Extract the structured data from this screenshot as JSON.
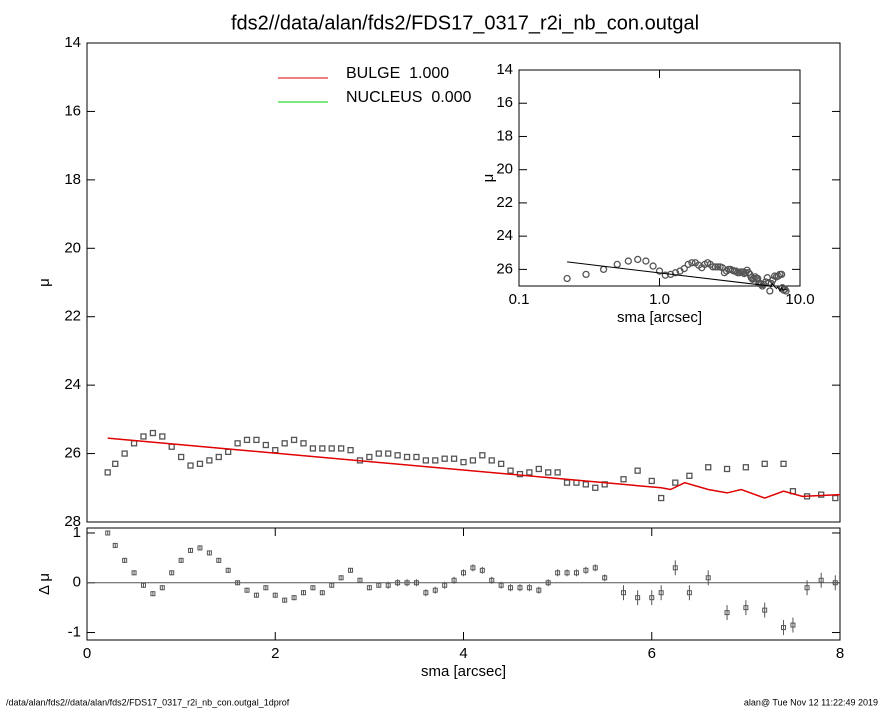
{
  "footer_left": "/data/alan/fds2//data/alan/fds2/FDS17_0317_r2i_nb_con.outgal_1dprof",
  "footer_right": "alan@  Tue Nov 12 11:22:49 2019",
  "chart_data": [
    {
      "type": "scatter",
      "title": "fds2//data/alan/fds2/FDS17_0317_r2i_nb_con.outgal",
      "ylabel": "μ",
      "xlim": [
        0,
        8
      ],
      "ylim": [
        14,
        28
      ],
      "yticks": [
        14,
        16,
        18,
        20,
        22,
        24,
        26,
        28
      ],
      "y_reversed": true,
      "points": {
        "color": "#555555",
        "x": [
          0.22,
          0.3,
          0.4,
          0.5,
          0.6,
          0.7,
          0.8,
          0.9,
          1.0,
          1.1,
          1.2,
          1.3,
          1.4,
          1.5,
          1.6,
          1.7,
          1.8,
          1.9,
          2.0,
          2.1,
          2.2,
          2.3,
          2.4,
          2.5,
          2.6,
          2.7,
          2.8,
          2.9,
          3.0,
          3.1,
          3.2,
          3.3,
          3.4,
          3.5,
          3.6,
          3.7,
          3.8,
          3.9,
          4.0,
          4.1,
          4.2,
          4.3,
          4.4,
          4.5,
          4.6,
          4.7,
          4.8,
          4.9,
          5.0,
          5.1,
          5.2,
          5.3,
          5.4,
          5.5,
          5.7,
          5.85,
          6.0,
          6.1,
          6.25,
          6.4,
          6.6,
          6.8,
          7.0,
          7.2,
          7.4,
          7.5,
          7.65,
          7.8,
          7.95
        ],
        "values": [
          26.55,
          26.3,
          26.0,
          25.7,
          25.5,
          25.4,
          25.5,
          25.8,
          26.1,
          26.35,
          26.3,
          26.2,
          26.1,
          25.95,
          25.7,
          25.6,
          25.6,
          25.75,
          25.9,
          25.7,
          25.6,
          25.7,
          25.85,
          25.85,
          25.85,
          25.85,
          25.9,
          26.2,
          26.1,
          26.0,
          26.0,
          26.05,
          26.1,
          26.1,
          26.2,
          26.2,
          26.15,
          26.15,
          26.25,
          26.2,
          26.05,
          26.2,
          26.3,
          26.5,
          26.6,
          26.55,
          26.45,
          26.55,
          26.55,
          26.85,
          26.85,
          26.9,
          27.0,
          26.9,
          26.75,
          26.5,
          26.8,
          27.3,
          26.85,
          26.65,
          26.4,
          26.45,
          26.4,
          26.3,
          26.3,
          27.1,
          27.25,
          27.2,
          27.3
        ]
      },
      "series": [
        {
          "name": "BULGE  1.000",
          "color": "#e00000",
          "x": [
            0.22,
            6.1,
            6.2,
            6.35,
            6.6,
            6.8,
            6.95,
            7.2,
            7.4,
            7.6,
            8.0
          ],
          "values": [
            25.55,
            27.0,
            27.05,
            26.85,
            27.05,
            27.15,
            27.05,
            27.3,
            27.1,
            27.25,
            27.2
          ]
        },
        {
          "name": "NUCLEUS  0.000",
          "color": "#00d000",
          "x": [],
          "values": []
        }
      ]
    },
    {
      "type": "errorbar",
      "ylabel": "Δ μ",
      "xlabel": "sma [arcsec]",
      "xlim": [
        0,
        8
      ],
      "xticks": [
        0,
        2,
        4,
        6,
        8
      ],
      "ylim": [
        -1.15,
        1.1
      ],
      "yticks": [
        -1,
        0,
        1
      ],
      "color": "#555555",
      "values": [
        1.0,
        0.75,
        0.45,
        0.2,
        -0.05,
        -0.22,
        -0.1,
        0.2,
        0.45,
        0.65,
        0.7,
        0.6,
        0.45,
        0.25,
        0.0,
        -0.15,
        -0.25,
        -0.1,
        -0.25,
        -0.35,
        -0.3,
        -0.2,
        -0.1,
        -0.2,
        -0.05,
        0.1,
        0.25,
        0.05,
        -0.1,
        -0.05,
        -0.05,
        0.0,
        0.0,
        0.0,
        -0.2,
        -0.15,
        -0.05,
        0.05,
        0.2,
        0.3,
        0.25,
        0.05,
        -0.05,
        -0.1,
        -0.1,
        -0.1,
        -0.15,
        0.0,
        0.2,
        0.2,
        0.2,
        0.25,
        0.3,
        0.1,
        -0.2,
        -0.3,
        -0.3,
        -0.2,
        0.3,
        -0.2,
        0.1,
        -0.6,
        -0.5,
        -0.55,
        -0.9,
        -0.85,
        -0.1,
        0.05,
        0.0
      ],
      "errors": [
        0.05,
        0.05,
        0.05,
        0.05,
        0.05,
        0.05,
        0.05,
        0.05,
        0.05,
        0.05,
        0.05,
        0.05,
        0.05,
        0.05,
        0.05,
        0.05,
        0.05,
        0.05,
        0.05,
        0.05,
        0.05,
        0.05,
        0.05,
        0.05,
        0.05,
        0.05,
        0.05,
        0.05,
        0.05,
        0.05,
        0.07,
        0.07,
        0.07,
        0.07,
        0.07,
        0.07,
        0.07,
        0.07,
        0.07,
        0.07,
        0.07,
        0.07,
        0.07,
        0.07,
        0.07,
        0.07,
        0.07,
        0.07,
        0.07,
        0.07,
        0.07,
        0.07,
        0.07,
        0.07,
        0.15,
        0.15,
        0.15,
        0.15,
        0.15,
        0.15,
        0.15,
        0.15,
        0.15,
        0.15,
        0.15,
        0.15,
        0.15,
        0.15,
        0.15
      ]
    },
    {
      "type": "scatter",
      "ylabel": "μ",
      "xlabel": "sma [arcsec]",
      "xscale": "log",
      "xlim": [
        0.1,
        10
      ],
      "xticks": [
        {
          "value": 0.1,
          "label": "0.1"
        },
        {
          "value": 1,
          "label": "1.0"
        },
        {
          "value": 10,
          "label": "10.0"
        }
      ],
      "ylim": [
        14,
        27
      ],
      "yticks": [
        14,
        16,
        18,
        20,
        22,
        24,
        26
      ],
      "y_reversed": true
    }
  ]
}
